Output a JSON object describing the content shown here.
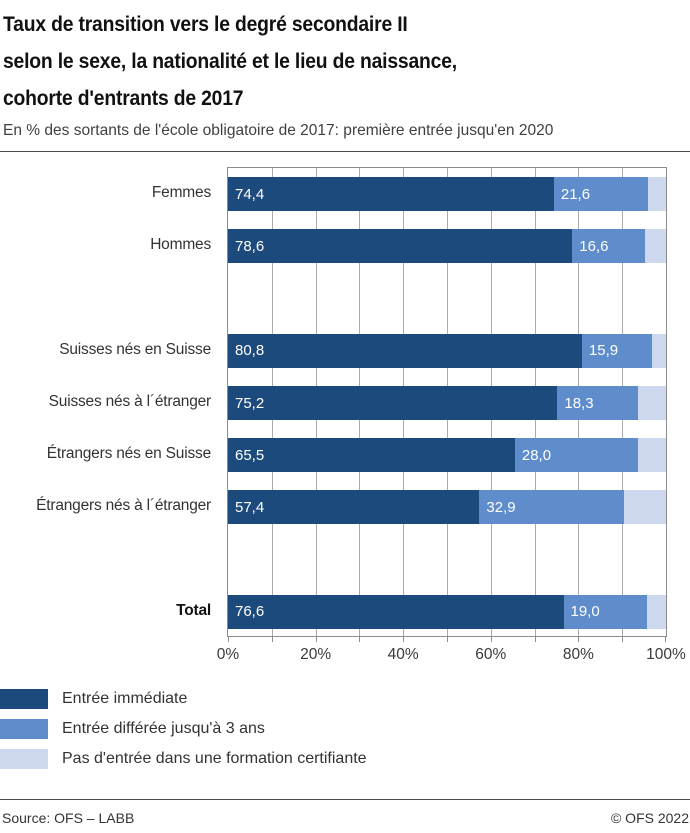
{
  "header": {
    "title_lines": [
      "Taux de transition vers le degré secondaire II",
      "selon le sexe, la nationalité et le lieu de naissance,",
      "cohorte d'entrants de 2017"
    ],
    "subtitle": "En % des sortants de l'école obligatoire de 2017: première entrée jusqu'en 2020"
  },
  "chart_data": {
    "type": "bar",
    "orientation": "horizontal",
    "stacked": true,
    "unit": "%",
    "xlim": [
      0,
      100
    ],
    "x_tick_labels": [
      "0%",
      "20%",
      "40%",
      "60%",
      "80%",
      "100%"
    ],
    "gridline_step_percent": 10,
    "categories": [
      "Femmes",
      "Hommes",
      "Suisses nés en Suisse",
      "Suisses nés à l´étranger",
      "Étrangers nés en Suisse",
      "Étrangers nés à l´étranger",
      "Total"
    ],
    "bold_category": "Total",
    "row_groups": [
      [
        0,
        1
      ],
      [
        2,
        3,
        4,
        5
      ],
      [
        6
      ]
    ],
    "series": [
      {
        "name": "Entrée immédiate",
        "color": "#1d4a7c",
        "labeled": true,
        "values": [
          74.4,
          78.6,
          80.8,
          75.2,
          65.5,
          57.4,
          76.6
        ]
      },
      {
        "name": "Entrée différée jusqu'à 3 ans",
        "color": "#5f8dcb",
        "labeled": true,
        "values": [
          21.6,
          16.6,
          15.9,
          18.3,
          28.0,
          32.9,
          19.0
        ]
      },
      {
        "name": "Pas d'entrée dans une formation certifiante",
        "color": "#cdd8ee",
        "labeled": false,
        "values": [
          4.0,
          4.8,
          3.3,
          6.5,
          6.5,
          9.7,
          4.4
        ]
      }
    ],
    "value_label_decimal_separator": ","
  },
  "footer": {
    "source": "Source: OFS – LABB",
    "copyright": "© OFS 2022"
  },
  "colors": {
    "gridline": "#ababab",
    "plot_border": "#8c8c8c",
    "rule": "#4a4a4a"
  }
}
